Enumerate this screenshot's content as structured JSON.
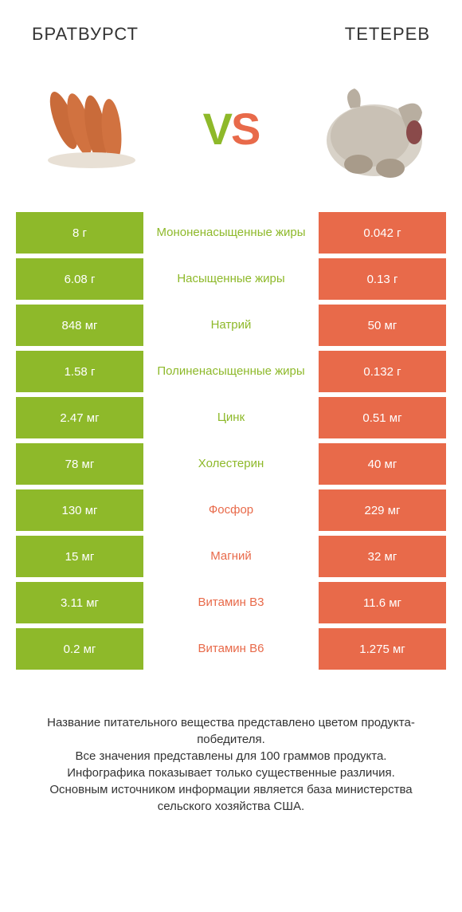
{
  "colors": {
    "left": "#8eb92a",
    "right": "#e86a4a",
    "bg": "#ffffff",
    "text": "#333333"
  },
  "header": {
    "left_title": "БРАТВУРСТ",
    "right_title": "ТЕТЕРЕВ",
    "vs_v": "V",
    "vs_s": "S"
  },
  "rows": [
    {
      "left": "8 г",
      "label": "Мононенасыщенные жиры",
      "right": "0.042 г",
      "winner": "left"
    },
    {
      "left": "6.08 г",
      "label": "Насыщенные жиры",
      "right": "0.13 г",
      "winner": "left"
    },
    {
      "left": "848 мг",
      "label": "Натрий",
      "right": "50 мг",
      "winner": "left"
    },
    {
      "left": "1.58 г",
      "label": "Полиненасыщенные жиры",
      "right": "0.132 г",
      "winner": "left"
    },
    {
      "left": "2.47 мг",
      "label": "Цинк",
      "right": "0.51 мг",
      "winner": "left"
    },
    {
      "left": "78 мг",
      "label": "Холестерин",
      "right": "40 мг",
      "winner": "left"
    },
    {
      "left": "130 мг",
      "label": "Фосфор",
      "right": "229 мг",
      "winner": "right"
    },
    {
      "left": "15 мг",
      "label": "Магний",
      "right": "32 мг",
      "winner": "right"
    },
    {
      "left": "3.11 мг",
      "label": "Витамин B3",
      "right": "11.6 мг",
      "winner": "right"
    },
    {
      "left": "0.2 мг",
      "label": "Витамин B6",
      "right": "1.275 мг",
      "winner": "right"
    }
  ],
  "footer": {
    "line1": "Название питательного вещества представлено цветом продукта-победителя.",
    "line2": "Все значения представлены для 100 граммов продукта.",
    "line3": "Инфографика показывает только существенные различия.",
    "line4": "Основным источником информации является база министерства сельского хозяйства США."
  }
}
